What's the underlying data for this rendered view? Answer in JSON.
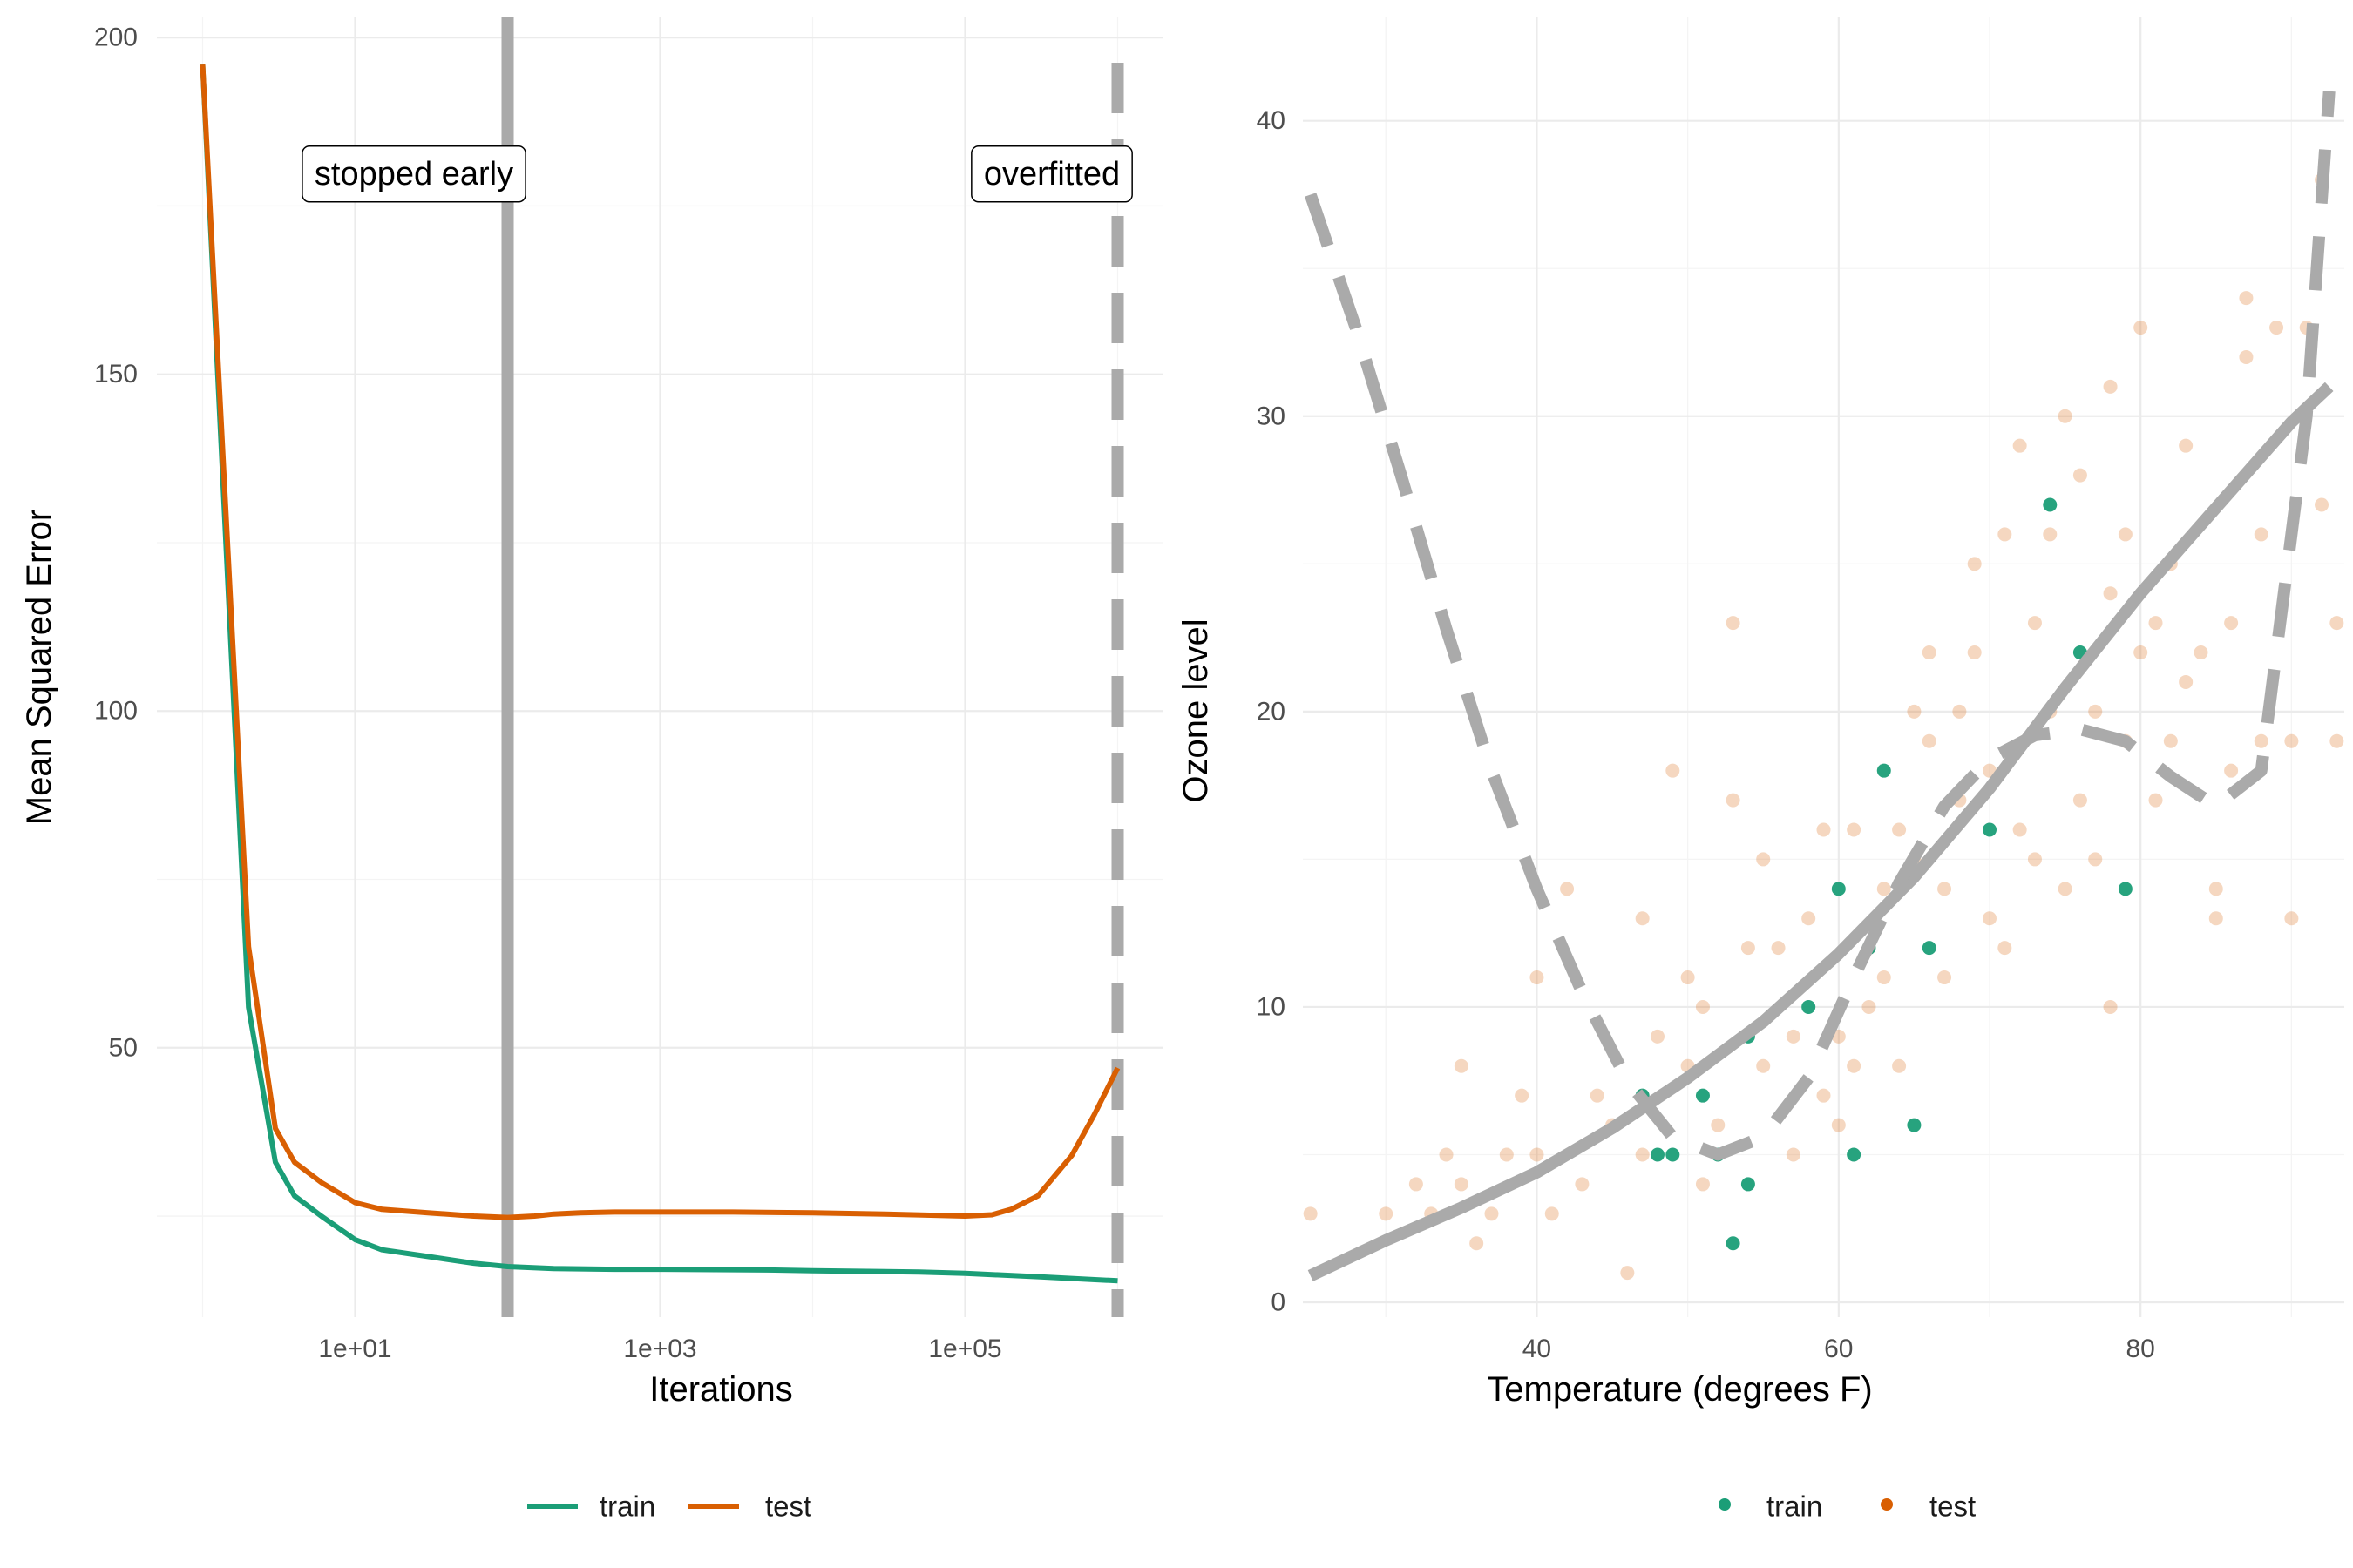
{
  "chart_data": [
    {
      "type": "line",
      "xlabel": "Iterations",
      "ylabel": "Mean Squared Error",
      "x_scale": "log10",
      "xlim": [
        1,
        1000000
      ],
      "ylim": [
        10,
        203
      ],
      "x_ticks": [
        10,
        1000,
        100000
      ],
      "x_tick_labels": [
        "1e+01",
        "1e+03",
        "1e+05"
      ],
      "y_ticks": [
        50,
        100,
        150,
        200
      ],
      "y_tick_labels": [
        "50",
        "100",
        "150",
        "200"
      ],
      "grid": true,
      "legend_position": "bottom",
      "series": [
        {
          "name": "train",
          "color": "#1b9e77",
          "x": [
            1,
            2,
            3,
            4,
            6,
            10,
            15,
            30,
            60,
            100,
            200,
            500,
            1000,
            5000,
            10000,
            50000,
            100000,
            300000,
            1000000
          ],
          "values": [
            196,
            56,
            33,
            28,
            25,
            21.5,
            20,
            19,
            18,
            17.5,
            17.2,
            17.1,
            17.1,
            17,
            16.9,
            16.7,
            16.5,
            16,
            15.4
          ]
        },
        {
          "name": "test",
          "color": "#d95f02",
          "x": [
            1,
            2,
            3,
            4,
            6,
            10,
            15,
            30,
            60,
            100,
            150,
            200,
            300,
            500,
            1000,
            3000,
            10000,
            30000,
            100000,
            150000,
            200000,
            300000,
            500000,
            700000,
            1000000
          ],
          "values": [
            196,
            65,
            38,
            33,
            30,
            27,
            26,
            25.5,
            25,
            24.8,
            25,
            25.3,
            25.5,
            25.6,
            25.6,
            25.6,
            25.5,
            25.3,
            25,
            25.2,
            26,
            28,
            34,
            40,
            47
          ]
        }
      ],
      "annotations": [
        {
          "label": "stopped early",
          "x": 100,
          "y": 180,
          "line": "solid"
        },
        {
          "label": "overfitted",
          "x": 1000000,
          "y": 180,
          "line": "dashed"
        }
      ]
    },
    {
      "type": "scatter",
      "xlabel": "Temperature (degrees F)",
      "ylabel": "Ozone level",
      "xlim": [
        24.5,
        93.5
      ],
      "ylim": [
        -0.5,
        43.5
      ],
      "x_ticks": [
        40,
        60,
        80
      ],
      "x_tick_labels": [
        "40",
        "60",
        "80"
      ],
      "y_ticks": [
        0,
        10,
        20,
        30,
        40
      ],
      "y_tick_labels": [
        "0",
        "10",
        "20",
        "30",
        "40"
      ],
      "grid": true,
      "legend_position": "bottom",
      "series": [
        {
          "name": "train",
          "color": "#1b9e77",
          "points": [
            [
              47,
              7
            ],
            [
              48,
              5
            ],
            [
              49,
              5
            ],
            [
              51,
              7
            ],
            [
              52,
              5
            ],
            [
              53,
              2
            ],
            [
              54,
              4
            ],
            [
              54,
              9
            ],
            [
              58,
              10
            ],
            [
              60,
              14
            ],
            [
              61,
              5
            ],
            [
              62,
              12
            ],
            [
              63,
              18
            ],
            [
              65,
              6
            ],
            [
              66,
              12
            ],
            [
              70,
              16
            ],
            [
              74,
              27
            ],
            [
              76,
              22
            ],
            [
              79,
              14
            ]
          ]
        },
        {
          "name": "test",
          "color": "#d95f02",
          "points": [
            [
              25,
              3
            ],
            [
              30,
              3
            ],
            [
              32,
              4
            ],
            [
              33,
              3
            ],
            [
              34,
              5
            ],
            [
              35,
              8
            ],
            [
              35,
              4
            ],
            [
              36,
              2
            ],
            [
              37,
              3
            ],
            [
              38,
              5
            ],
            [
              39,
              7
            ],
            [
              40,
              5
            ],
            [
              40,
              11
            ],
            [
              41,
              3
            ],
            [
              42,
              14
            ],
            [
              43,
              4
            ],
            [
              44,
              7
            ],
            [
              45,
              6
            ],
            [
              46,
              1
            ],
            [
              47,
              5
            ],
            [
              47,
              13
            ],
            [
              48,
              9
            ],
            [
              49,
              18
            ],
            [
              50,
              8
            ],
            [
              50,
              11
            ],
            [
              51,
              4
            ],
            [
              51,
              10
            ],
            [
              52,
              6
            ],
            [
              53,
              17
            ],
            [
              53,
              23
            ],
            [
              54,
              12
            ],
            [
              55,
              15
            ],
            [
              55,
              8
            ],
            [
              56,
              12
            ],
            [
              57,
              5
            ],
            [
              57,
              9
            ],
            [
              58,
              13
            ],
            [
              59,
              7
            ],
            [
              59,
              16
            ],
            [
              60,
              6
            ],
            [
              60,
              9
            ],
            [
              61,
              8
            ],
            [
              61,
              16
            ],
            [
              62,
              10
            ],
            [
              62,
              12
            ],
            [
              63,
              14
            ],
            [
              63,
              11
            ],
            [
              64,
              8
            ],
            [
              64,
              16
            ],
            [
              65,
              15
            ],
            [
              65,
              20
            ],
            [
              66,
              19
            ],
            [
              66,
              22
            ],
            [
              67,
              11
            ],
            [
              67,
              14
            ],
            [
              68,
              17
            ],
            [
              68,
              20
            ],
            [
              69,
              22
            ],
            [
              69,
              25
            ],
            [
              70,
              13
            ],
            [
              70,
              18
            ],
            [
              71,
              12
            ],
            [
              71,
              26
            ],
            [
              72,
              16
            ],
            [
              72,
              29
            ],
            [
              73,
              15
            ],
            [
              73,
              23
            ],
            [
              74,
              20
            ],
            [
              74,
              26
            ],
            [
              75,
              30
            ],
            [
              75,
              14
            ],
            [
              76,
              17
            ],
            [
              76,
              28
            ],
            [
              77,
              20
            ],
            [
              77,
              15
            ],
            [
              78,
              24
            ],
            [
              78,
              31
            ],
            [
              78,
              10
            ],
            [
              79,
              19
            ],
            [
              79,
              26
            ],
            [
              80,
              22
            ],
            [
              80,
              33
            ],
            [
              81,
              23
            ],
            [
              81,
              17
            ],
            [
              82,
              25
            ],
            [
              82,
              19
            ],
            [
              83,
              29
            ],
            [
              83,
              21
            ],
            [
              84,
              22
            ],
            [
              85,
              13
            ],
            [
              85,
              14
            ],
            [
              86,
              23
            ],
            [
              86,
              18
            ],
            [
              87,
              32
            ],
            [
              87,
              34
            ],
            [
              88,
              26
            ],
            [
              88,
              19
            ],
            [
              89,
              33
            ],
            [
              90,
              13
            ],
            [
              90,
              19
            ],
            [
              91,
              33
            ],
            [
              92,
              27
            ],
            [
              92,
              38
            ],
            [
              93,
              23
            ],
            [
              93,
              19
            ]
          ]
        }
      ],
      "fits": [
        {
          "style": "solid",
          "color": "#aaaaaa",
          "x": [
            25,
            30,
            35,
            40,
            45,
            50,
            55,
            60,
            65,
            70,
            75,
            80,
            85,
            90,
            92.5
          ],
          "y": [
            0.9,
            2.1,
            3.2,
            4.4,
            5.9,
            7.6,
            9.5,
            11.8,
            14.4,
            17.4,
            20.8,
            24.0,
            26.9,
            29.8,
            31.0
          ]
        },
        {
          "style": "dashed",
          "color": "#aaaaaa",
          "x": [
            25,
            28,
            31,
            34,
            37,
            40,
            43,
            46,
            49,
            52,
            55,
            58,
            61,
            64,
            67,
            70,
            73,
            76,
            79,
            82,
            85,
            88,
            91,
            92.5
          ],
          "y": [
            37.5,
            33,
            28,
            22.8,
            18,
            14,
            10.5,
            7.5,
            5.6,
            5,
            5.6,
            7.6,
            11,
            14.2,
            16.8,
            18.4,
            19.2,
            19.4,
            19,
            17.8,
            16.8,
            18,
            30,
            41
          ]
        }
      ]
    }
  ]
}
